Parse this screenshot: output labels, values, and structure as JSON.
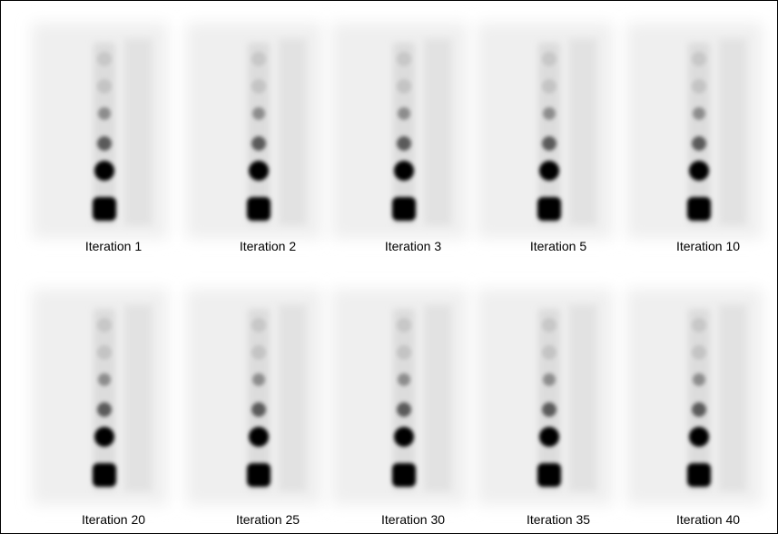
{
  "panels": [
    {
      "label": "Iteration  1"
    },
    {
      "label": "Iteration  2"
    },
    {
      "label": "Iteration  3"
    },
    {
      "label": "Iteration  5"
    },
    {
      "label": "Iteration  10"
    },
    {
      "label": "Iteration  20"
    },
    {
      "label": "Iteration  25"
    },
    {
      "label": "Iteration  30"
    },
    {
      "label": "Iteration  35"
    },
    {
      "label": "Iteration  40"
    }
  ]
}
